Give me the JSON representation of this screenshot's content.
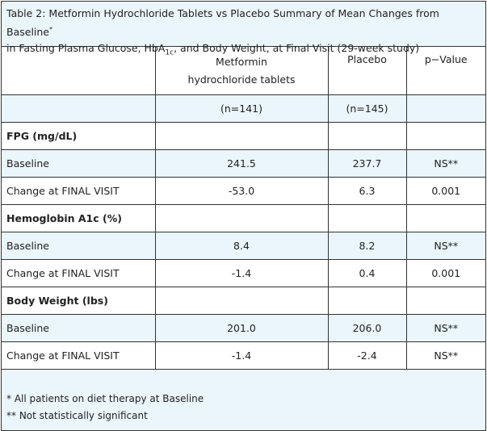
{
  "caption": {
    "line1": "Table 2: Metformin Hydrochloride Tablets vs Placebo Summary of Mean Changes from Baseline",
    "line1_mark": "*",
    "line2_pre": "in Fasting Plasma Glucose, HbA",
    "line2_sub": "1c",
    "line2_post": ", and Body Weight, at Final Visit (29-week study)"
  },
  "columns": [
    "",
    "Metformin hydrochloride tablets",
    "Placebo",
    "p−Value"
  ],
  "n_row": [
    "",
    "(n=141)",
    "(n=145)",
    ""
  ],
  "rows": [
    {
      "cells": [
        "FPG (mg/dL)",
        "",
        "",
        ""
      ]
    },
    {
      "cells": [
        "Baseline",
        "241.5",
        "237.7",
        "NS**"
      ]
    },
    {
      "cells": [
        "Change at FINAL VISIT",
        "-53.0",
        "6.3",
        "0.001"
      ]
    },
    {
      "cells": [
        "Hemoglobin A1c (%)",
        "",
        "",
        ""
      ]
    },
    {
      "cells": [
        "Baseline",
        "8.4",
        "8.2",
        "NS**"
      ]
    },
    {
      "cells": [
        "Change at FINAL VISIT",
        "-1.4",
        "0.4",
        "0.001"
      ]
    },
    {
      "cells": [
        "Body Weight (lbs)",
        "",
        "",
        ""
      ]
    },
    {
      "cells": [
        "Baseline",
        "201.0",
        "206.0",
        "NS**"
      ]
    },
    {
      "cells": [
        "Change at FINAL VISIT",
        "-1.4",
        "-2.4",
        "NS**"
      ]
    }
  ],
  "footnotes": [
    "* All patients on diet therapy at Baseline",
    "** Not statistically significant"
  ],
  "colors": {
    "row_highlight": "#eaf5fc",
    "border": "#333333"
  }
}
